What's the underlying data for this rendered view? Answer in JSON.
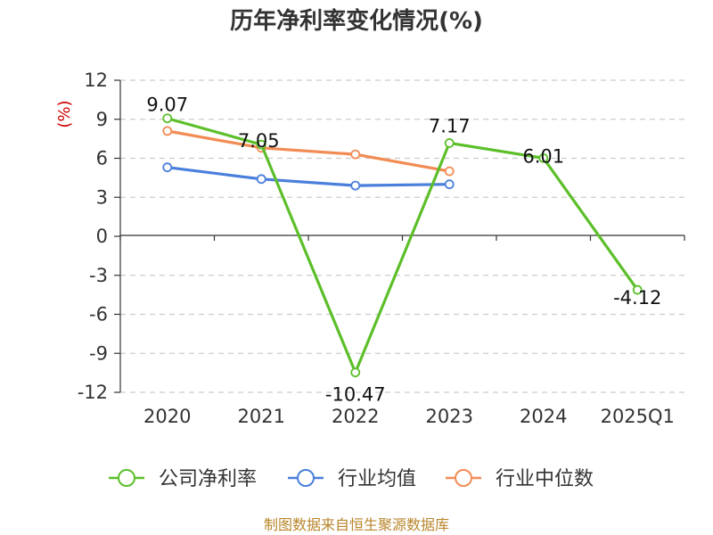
{
  "chart_data": {
    "type": "line",
    "title": "历年净利率变化情况(%)",
    "y_unit_label": "(%)",
    "categories": [
      "2020",
      "2021",
      "2022",
      "2023",
      "2024",
      "2025Q1"
    ],
    "ylim": [
      -12,
      12
    ],
    "yticks": [
      "12",
      "9",
      "6",
      "3",
      "0",
      "-3",
      "-6",
      "-9",
      "-12"
    ],
    "grid": true,
    "legend_position": "bottom",
    "series": [
      {
        "name": "公司净利率",
        "color": "#5cbf2a",
        "values": [
          9.07,
          7.05,
          -10.47,
          7.17,
          6.01,
          -4.12
        ],
        "labels": [
          "9.07",
          "7.05",
          "-10.47",
          "7.17",
          "6.01",
          "-4.12"
        ]
      },
      {
        "name": "行业均值",
        "color": "#4a7fdc",
        "values": [
          5.3,
          4.4,
          3.9,
          4.0,
          null,
          null
        ]
      },
      {
        "name": "行业中位数",
        "color": "#f28c55",
        "values": [
          8.1,
          6.8,
          6.3,
          5.0,
          null,
          null
        ]
      }
    ],
    "source_note": "制图数据来自恒生聚源数据库"
  }
}
